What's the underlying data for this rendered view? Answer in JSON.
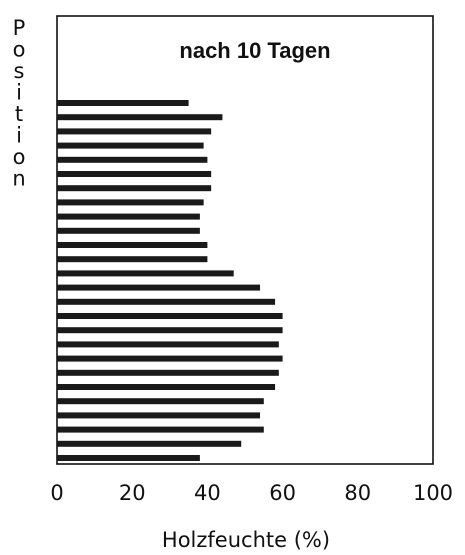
{
  "chart_data": {
    "type": "bar",
    "orientation": "horizontal",
    "title": "nach 10 Tagen",
    "xlabel": "Holzfeuchte (%)",
    "ylabel": "Position",
    "xlim": [
      0,
      100
    ],
    "xticks": [
      "0",
      "20",
      "40",
      "60",
      "80",
      "100"
    ],
    "values": [
      35,
      44,
      41,
      39,
      40,
      41,
      41,
      39,
      38,
      38,
      40,
      40,
      47,
      54,
      58,
      60,
      60,
      59,
      60,
      59,
      58,
      55,
      54,
      55,
      49,
      38
    ],
    "bar_color": "#1a1a1a",
    "grid": false
  }
}
